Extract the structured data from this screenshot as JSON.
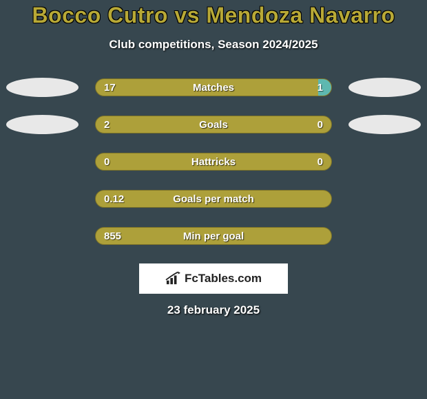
{
  "title": "Bocco Cutro vs Mendoza Navarro",
  "subtitle": "Club competitions, Season 2024/2025",
  "date": "23 february 2025",
  "logo": {
    "text": "FcTables.com"
  },
  "colors": {
    "background": "#37474f",
    "title": "#b8a936",
    "text": "#ffffff",
    "bar_left": "#ada03a",
    "bar_right": "#5eb8b0",
    "bar_border": "#7a7128",
    "ellipse": "#e8e8e8",
    "logo_bg": "#ffffff",
    "logo_text": "#222222"
  },
  "typography": {
    "title_fontsize": 32,
    "subtitle_fontsize": 17,
    "bar_label_fontsize": 15,
    "date_fontsize": 17,
    "font_family": "Arial"
  },
  "layout": {
    "bar_track_width": 344,
    "bar_track_height": 26,
    "bar_radius": 14,
    "ellipse_width": 105,
    "ellipse_height": 28,
    "row_gap": 26
  },
  "stats": [
    {
      "label": "Matches",
      "left_value": "17",
      "right_value": "1",
      "show_left_ellipse": true,
      "show_right_ellipse": true,
      "left_pct": 94.4,
      "right_pct": 5.6
    },
    {
      "label": "Goals",
      "left_value": "2",
      "right_value": "0",
      "show_left_ellipse": true,
      "show_right_ellipse": true,
      "left_pct": 100,
      "right_pct": 0
    },
    {
      "label": "Hattricks",
      "left_value": "0",
      "right_value": "0",
      "show_left_ellipse": false,
      "show_right_ellipse": false,
      "left_pct": 100,
      "right_pct": 0
    },
    {
      "label": "Goals per match",
      "left_value": "0.12",
      "right_value": "",
      "show_left_ellipse": false,
      "show_right_ellipse": false,
      "left_pct": 100,
      "right_pct": 0
    },
    {
      "label": "Min per goal",
      "left_value": "855",
      "right_value": "",
      "show_left_ellipse": false,
      "show_right_ellipse": false,
      "left_pct": 100,
      "right_pct": 0
    }
  ]
}
